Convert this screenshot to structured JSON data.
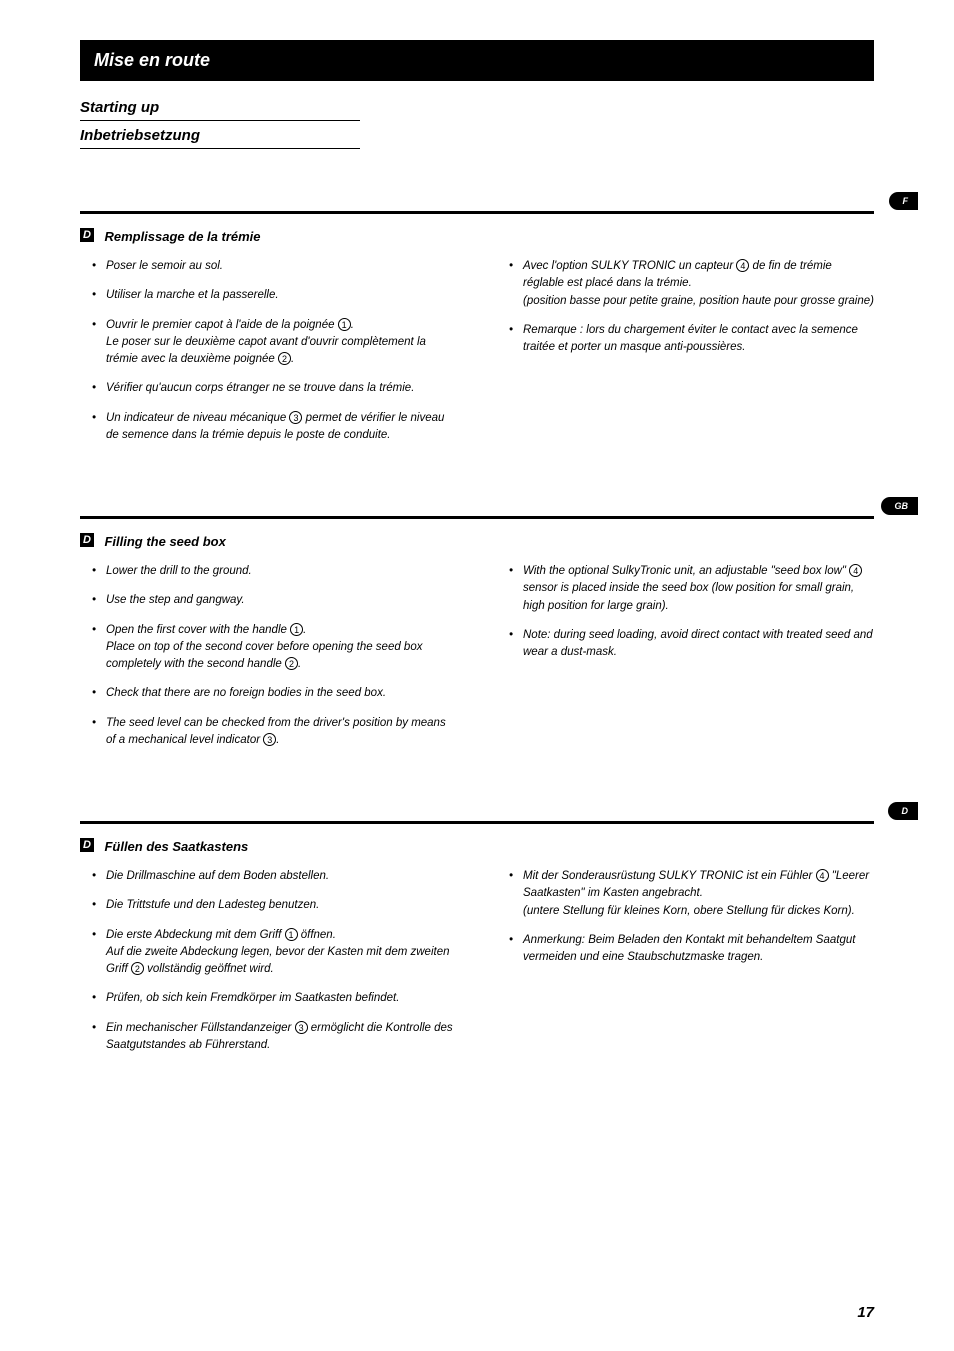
{
  "header": {
    "title": "Mise en route",
    "sub1": "Starting up",
    "sub2": "Inbetriebsetzung"
  },
  "sections": [
    {
      "lang_tab": "F",
      "marker": "D",
      "title": "Remplissage de la trémie",
      "left": [
        "Poser le semoir au sol.",
        " Utiliser la marche et la passerelle.",
        "Ouvrir le premier capot à l'aide de la poignée ①.\nLe poser sur le deuxième capot avant d'ouvrir complètement la trémie avec la deuxième poignée ②.",
        "Vérifier qu'aucun corps étranger ne se trouve dans la trémie.",
        "Un indicateur de niveau mécanique ③ permet de vérifier le niveau de semence dans la trémie depuis le poste de conduite."
      ],
      "right": [
        "Avec l'option SULKY TRONIC un capteur ④ de fin de trémie réglable est placé dans la trémie.\n(position basse pour petite graine, position haute pour grosse graine)",
        "Remarque : lors  du chargement éviter le contact avec la semence traitée et porter un masque anti-poussières."
      ]
    },
    {
      "lang_tab": "GB",
      "marker": "D",
      "title": "Filling the seed box",
      "left": [
        "Lower the drill to the ground.",
        " Use the step and gangway.",
        "Open the first cover with the handle ①.\nPlace on top of the second cover before opening the seed box completely with the second handle ②.",
        "Check that there are no foreign bodies in the seed box.",
        "The seed level can be checked from the driver's position by means of a mechanical level indicator ③."
      ],
      "right": [
        "With the optional SulkyTronic unit, an adjustable \"seed box low\"  ④ sensor is placed inside the seed box (low position for small grain, high position for large grain).",
        "Note: during seed loading, avoid direct contact with treated seed and wear a dust-mask."
      ]
    },
    {
      "lang_tab": "D",
      "marker": "D",
      "title": "Füllen des Saatkastens",
      "left": [
        "Die Drillmaschine auf dem Boden abstellen.",
        " Die Trittstufe und den Ladesteg benutzen.",
        "Die erste Abdeckung mit dem Griff  ① öffnen.\nAuf die zweite Abdeckung legen, bevor der Kasten mit dem zweiten Griff ② vollständig geöffnet wird.",
        "Prüfen, ob sich kein Fremdkörper im Saatkasten befindet.",
        "Ein mechanischer Füllstandanzeiger ③ ermöglicht die Kontrolle des Saatgutstandes ab Führerstand."
      ],
      "right": [
        "Mit der Sonderausrüstung SULKY TRONIC ist ein Fühler ④ \"Leerer Saatkasten\" im Kasten angebracht.\n(untere Stellung für kleines Korn, obere Stellung für dickes Korn).",
        "Anmerkung: Beim Beladen den Kontakt mit behandeltem Saatgut vermeiden und eine Staubschutzmaske tragen."
      ]
    }
  ],
  "page_number": "17"
}
